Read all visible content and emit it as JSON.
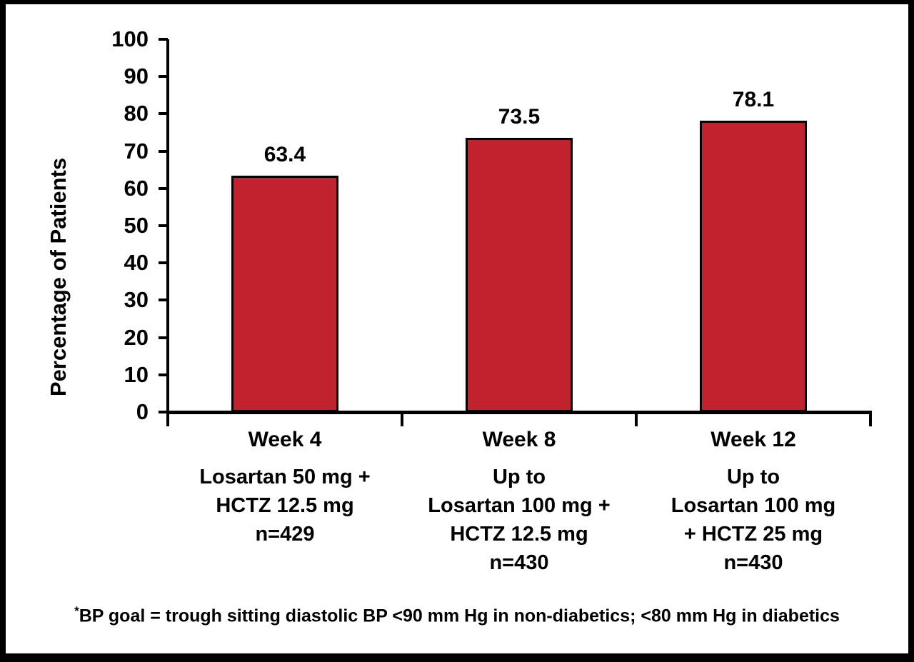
{
  "chart_data": {
    "type": "bar",
    "title": "",
    "ylabel": "Percentage of Patients",
    "xlabel": "",
    "ylim": [
      0,
      100
    ],
    "yticks": [
      0,
      10,
      20,
      30,
      40,
      50,
      60,
      70,
      80,
      90,
      100
    ],
    "grid": "off",
    "legend": "none",
    "bar_color": "#C2212E",
    "bar_border_color": "#000000",
    "categories": [
      {
        "week": "Week 4",
        "treatment_lines": [
          "Losartan 50 mg +",
          "HCTZ 12.5 mg"
        ],
        "n_label": "n=429",
        "value": 63.4,
        "value_label": "63.4"
      },
      {
        "week": "Week 8",
        "treatment_lines": [
          "Up to",
          "Losartan 100 mg +",
          "HCTZ 12.5 mg"
        ],
        "n_label": "n=430",
        "value": 73.5,
        "value_label": "73.5"
      },
      {
        "week": "Week 12",
        "treatment_lines": [
          "Up to",
          "Losartan 100 mg",
          "+ HCTZ 25 mg"
        ],
        "n_label": "n=430",
        "value": 78.1,
        "value_label": "78.1"
      }
    ],
    "footnote_marker": "*",
    "footnote_text": "BP goal = trough sitting diastolic BP <90 mm Hg in non-diabetics; <80 mm Hg in diabetics"
  }
}
